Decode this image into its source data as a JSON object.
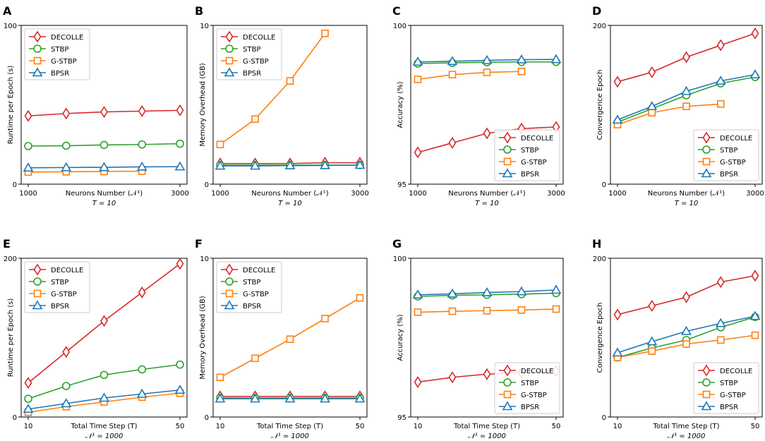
{
  "colors": {
    "DECOLLE": "#d62728",
    "STBP": "#2ca02c",
    "G-STBP": "#ff7f0e",
    "BPSR": "#1f77b4"
  },
  "series_order": [
    "DECOLLE",
    "STBP",
    "G-STBP",
    "BPSR"
  ],
  "chart_data": [
    {
      "panel": "A",
      "type": "line",
      "x": [
        1000,
        1500,
        2000,
        2500,
        3000
      ],
      "xticks": [
        "1000",
        "3000"
      ],
      "xlabel": "Neurons Number (𝒩¹)",
      "xlabel2": "T = 10",
      "ylabel": "Runtime per Epoch (s)",
      "ylim": [
        0,
        100
      ],
      "yticks": [
        "0",
        "100"
      ],
      "legend": "top-left",
      "series": [
        {
          "name": "DECOLLE",
          "values": [
            43,
            44.5,
            45.5,
            46,
            46.5
          ]
        },
        {
          "name": "STBP",
          "values": [
            24,
            24.2,
            24.7,
            25,
            25.5
          ]
        },
        {
          "name": "G-STBP",
          "values": [
            7.6,
            7.8,
            8,
            8.2,
            null
          ]
        },
        {
          "name": "BPSR",
          "values": [
            10.3,
            10.5,
            10.6,
            10.9,
            11
          ]
        }
      ]
    },
    {
      "panel": "B",
      "type": "line",
      "x": [
        1000,
        1500,
        2000,
        2500,
        3000
      ],
      "xticks": [
        "1000",
        "3000"
      ],
      "xlabel": "Neurons Number (𝒩¹)",
      "xlabel2": "T = 10",
      "ylabel": "Memory Overhead (GB)",
      "ylim": [
        0,
        10
      ],
      "yticks": [
        "0",
        "10"
      ],
      "legend": "top-left",
      "series": [
        {
          "name": "DECOLLE",
          "values": [
            1.3,
            1.3,
            1.3,
            1.35,
            1.35
          ]
        },
        {
          "name": "STBP",
          "values": [
            1.2,
            1.2,
            1.2,
            1.2,
            1.2
          ]
        },
        {
          "name": "G-STBP",
          "values": [
            2.5,
            4.1,
            6.5,
            9.5,
            null
          ]
        },
        {
          "name": "BPSR",
          "values": [
            1.15,
            1.15,
            1.17,
            1.18,
            1.2
          ]
        }
      ]
    },
    {
      "panel": "C",
      "type": "line",
      "x": [
        1000,
        1500,
        2000,
        2500,
        3000
      ],
      "xticks": [
        "1000",
        "3000"
      ],
      "xlabel": "Neurons Number (𝒩¹)",
      "xlabel2": "T = 10",
      "ylabel": "Accuracy (%)",
      "ylim": [
        95,
        100
      ],
      "yticks": [
        "95",
        "100"
      ],
      "legend": "bottom-right",
      "series": [
        {
          "name": "DECOLLE",
          "values": [
            96,
            96.3,
            96.6,
            96.75,
            96.8
          ]
        },
        {
          "name": "STBP",
          "values": [
            98.8,
            98.82,
            98.84,
            98.85,
            98.85
          ]
        },
        {
          "name": "G-STBP",
          "values": [
            98.3,
            98.45,
            98.52,
            98.55,
            null
          ]
        },
        {
          "name": "BPSR",
          "values": [
            98.85,
            98.87,
            98.9,
            98.92,
            98.93
          ]
        }
      ]
    },
    {
      "panel": "D",
      "type": "line",
      "x": [
        1000,
        1500,
        2000,
        2500,
        3000
      ],
      "xticks": [
        "1000",
        "3000"
      ],
      "xlabel": "Neurons Number (𝒩¹)",
      "xlabel2": "T = 10",
      "ylabel": "Convergence Epoch",
      "ylim": [
        0,
        200
      ],
      "yticks": [
        "0",
        "200"
      ],
      "legend": "bottom-right",
      "series": [
        {
          "name": "DECOLLE",
          "values": [
            129,
            141,
            160,
            175,
            190
          ]
        },
        {
          "name": "STBP",
          "values": [
            78,
            95,
            112,
            127,
            135
          ]
        },
        {
          "name": "G-STBP",
          "values": [
            75,
            90,
            98,
            101,
            null
          ]
        },
        {
          "name": "BPSR",
          "values": [
            81,
            98,
            117,
            130,
            138
          ]
        }
      ]
    },
    {
      "panel": "E",
      "type": "line",
      "x": [
        10,
        20,
        30,
        40,
        50
      ],
      "xticks": [
        "10",
        "50"
      ],
      "xlabel": "Total Time Step (T)",
      "xlabel2": "𝒩¹ = 1000",
      "ylabel": "Runtime per Epoch (s)",
      "ylim": [
        0,
        200
      ],
      "yticks": [
        "0",
        "200"
      ],
      "legend": "top-left",
      "series": [
        {
          "name": "DECOLLE",
          "values": [
            43,
            82,
            121,
            157,
            193
          ]
        },
        {
          "name": "STBP",
          "values": [
            23,
            39,
            53,
            60,
            66
          ]
        },
        {
          "name": "G-STBP",
          "values": [
            6,
            13,
            19,
            25,
            30
          ]
        },
        {
          "name": "BPSR",
          "values": [
            10,
            17,
            24,
            29,
            34
          ]
        }
      ]
    },
    {
      "panel": "F",
      "type": "line",
      "x": [
        10,
        20,
        30,
        40,
        50
      ],
      "xticks": [
        "10",
        "50"
      ],
      "xlabel": "Total Time Step (T)",
      "xlabel2": "𝒩¹ = 1000",
      "ylabel": "Memory Overhead (GB)",
      "ylim": [
        0,
        10
      ],
      "yticks": [
        "0",
        "10"
      ],
      "legend": "top-left",
      "series": [
        {
          "name": "DECOLLE",
          "values": [
            1.3,
            1.3,
            1.3,
            1.3,
            1.3
          ]
        },
        {
          "name": "STBP",
          "values": [
            1.2,
            1.2,
            1.2,
            1.2,
            1.2
          ]
        },
        {
          "name": "G-STBP",
          "values": [
            2.5,
            3.7,
            4.9,
            6.2,
            7.5
          ]
        },
        {
          "name": "BPSR",
          "values": [
            1.15,
            1.15,
            1.15,
            1.15,
            1.15
          ]
        }
      ]
    },
    {
      "panel": "G",
      "type": "line",
      "x": [
        10,
        20,
        30,
        40,
        50
      ],
      "xticks": [
        "10",
        "50"
      ],
      "xlabel": "Total Time Step (T)",
      "xlabel2": "𝒩¹ = 1000",
      "ylabel": "Accuracy (%)",
      "ylim": [
        95,
        100
      ],
      "yticks": [
        "95",
        "100"
      ],
      "legend": "bottom-right",
      "series": [
        {
          "name": "DECOLLE",
          "values": [
            96.1,
            96.25,
            96.35,
            96.4,
            96.45
          ]
        },
        {
          "name": "STBP",
          "values": [
            98.8,
            98.83,
            98.85,
            98.87,
            98.9
          ]
        },
        {
          "name": "G-STBP",
          "values": [
            98.3,
            98.33,
            98.35,
            98.37,
            98.4
          ]
        },
        {
          "name": "BPSR",
          "values": [
            98.85,
            98.88,
            98.92,
            98.95,
            99.0
          ]
        }
      ]
    },
    {
      "panel": "H",
      "type": "line",
      "x": [
        10,
        20,
        30,
        40,
        50
      ],
      "xticks": [
        "10",
        "50"
      ],
      "xlabel": "Total Time Step (T)",
      "xlabel2": "𝒩¹ = 1000",
      "ylabel": "Convergence Epoch",
      "ylim": [
        0,
        200
      ],
      "yticks": [
        "0",
        "200"
      ],
      "legend": "bottom-right",
      "series": [
        {
          "name": "DECOLLE",
          "values": [
            129,
            140,
            151,
            170,
            178
          ]
        },
        {
          "name": "STBP",
          "values": [
            75,
            87,
            97,
            113,
            126
          ]
        },
        {
          "name": "G-STBP",
          "values": [
            75,
            83,
            92,
            97,
            103
          ]
        },
        {
          "name": "BPSR",
          "values": [
            81,
            95,
            108,
            118,
            127
          ]
        }
      ]
    }
  ]
}
